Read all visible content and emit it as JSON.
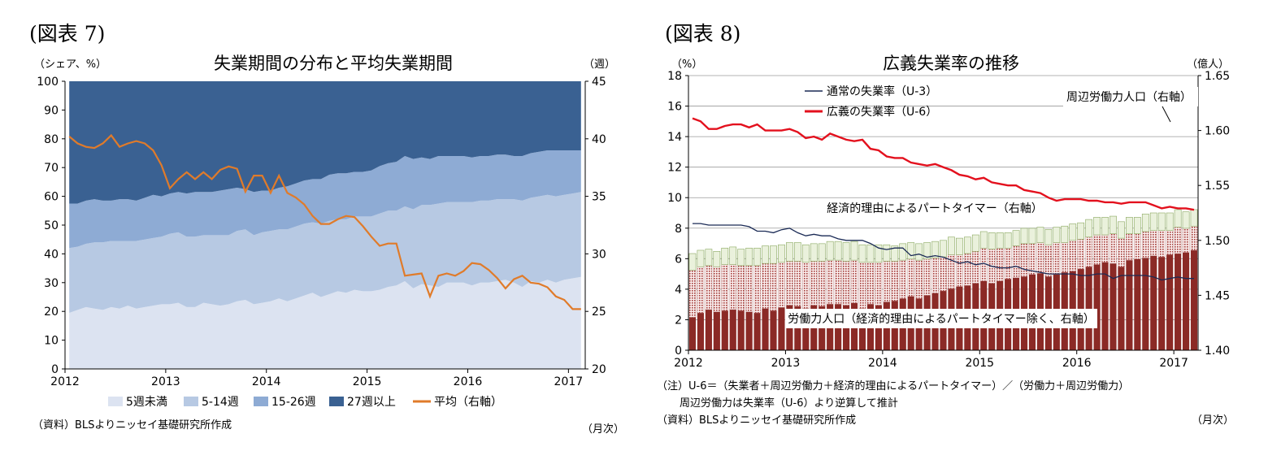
{
  "left_panel": {
    "panel_label": "(図表 7)",
    "title": "失業期間の分布と平均失業期間",
    "left_unit": "（シェア、%）",
    "right_unit": "（週）",
    "legend": [
      "5週未満",
      "5-14週",
      "15-26週",
      "27週以上",
      "平均（右軸）"
    ],
    "source": "（資料）BLSよりニッセイ基礎研究所作成",
    "month_note": "（月次）"
  },
  "right_panel": {
    "panel_label": "(図表 8)",
    "title": "広義失業率の推移",
    "left_unit": "（%）",
    "right_unit": "（億人）",
    "legend_u3": "通常の失業率（U-3）",
    "legend_u6": "広義の失業率（U-6）",
    "label_marginal": "周辺労働力人口（右軸）",
    "label_pte": "経済的理由によるパートタイマー（右軸）",
    "label_lf": "労働力人口（経済的理由によるパートタイマー除く、右軸）",
    "note_line1": "（注）U-6＝（失業者＋周辺労働力＋経済的理由によるパートタイマー）／（労働力＋周辺労働力）",
    "note_line2": "周辺労働力は失業率（U-6）より逆算して推計",
    "source": "（資料）BLSよりニッセイ基礎研究所作成",
    "month_note": "（月次）"
  },
  "chart_data": [
    {
      "type": "area",
      "title": "失業期間の分布と平均失業期間",
      "x": [
        "2012",
        "2012",
        "2012",
        "2012",
        "2012",
        "2012",
        "2012",
        "2012",
        "2012",
        "2012",
        "2012",
        "2012",
        "2013",
        "2013",
        "2013",
        "2013",
        "2013",
        "2013",
        "2013",
        "2013",
        "2013",
        "2013",
        "2013",
        "2013",
        "2014",
        "2014",
        "2014",
        "2014",
        "2014",
        "2014",
        "2014",
        "2014",
        "2014",
        "2014",
        "2014",
        "2014",
        "2015",
        "2015",
        "2015",
        "2015",
        "2015",
        "2015",
        "2015",
        "2015",
        "2015",
        "2015",
        "2015",
        "2015",
        "2016",
        "2016",
        "2016",
        "2016",
        "2016",
        "2016",
        "2016",
        "2016",
        "2016",
        "2016",
        "2016",
        "2016",
        "2017",
        "2017"
      ],
      "x_tick_labels": [
        "2012",
        "2013",
        "2014",
        "2015",
        "2016",
        "2017"
      ],
      "ylim": [
        0,
        100
      ],
      "y_ticks": [
        0,
        10,
        20,
        30,
        40,
        50,
        60,
        70,
        80,
        90,
        100
      ],
      "y2lim": [
        20,
        45
      ],
      "y2_ticks": [
        20,
        25,
        30,
        35,
        40,
        45
      ],
      "stacked": true,
      "series": [
        {
          "name": "5週未満",
          "axis": "left",
          "color": "#dce3f1",
          "values": [
            19.5,
            20.5,
            21.5,
            21,
            20.5,
            21.5,
            21,
            22,
            21,
            21.5,
            22,
            22.5,
            22.5,
            23,
            21.5,
            21.5,
            23,
            22.5,
            22,
            22.5,
            23.5,
            24,
            22.5,
            23,
            23.5,
            24.5,
            23.5,
            24.5,
            25.5,
            26.5,
            25,
            26,
            27,
            26.5,
            27.5,
            27,
            27,
            27.5,
            28.5,
            29,
            30.5,
            28,
            29.5,
            29,
            28.5,
            30,
            30,
            30,
            29,
            30,
            30,
            30.5,
            31,
            30,
            28.5,
            30.5,
            30,
            31,
            30,
            31,
            31.5,
            32
          ]
        },
        {
          "name": "5-14週",
          "axis": "left",
          "color": "#b7c9e3",
          "values": [
            22.5,
            22,
            22,
            23,
            23.5,
            23,
            23.5,
            22.5,
            23.5,
            23.5,
            23.5,
            23.5,
            24.5,
            24.5,
            24.5,
            24.5,
            23.5,
            24,
            24.5,
            24,
            24.5,
            24.5,
            24,
            24.5,
            24.5,
            24,
            25,
            25,
            25,
            24.5,
            25.5,
            25.5,
            25,
            25.5,
            25.5,
            26,
            26,
            26.5,
            26.5,
            26,
            26,
            27.5,
            27.5,
            28,
            29,
            28,
            28,
            28,
            29,
            28.5,
            28.5,
            28.5,
            28,
            29,
            30,
            29,
            30,
            29.5,
            30,
            29.5,
            29.5,
            29.5
          ]
        },
        {
          "name": "15-26週",
          "axis": "left",
          "color": "#8eabd4",
          "values": [
            15.5,
            15,
            15,
            15,
            14.5,
            14,
            14.5,
            14.5,
            14,
            14.5,
            15,
            14,
            14,
            14,
            15,
            15.5,
            15,
            15,
            15.5,
            16,
            15,
            14,
            15,
            14.5,
            14,
            14.5,
            15,
            15,
            15,
            15,
            15.5,
            16,
            16,
            16,
            15.5,
            15.5,
            16,
            16.5,
            16.5,
            17,
            17.5,
            17.5,
            16.5,
            16,
            16.5,
            16,
            16,
            16,
            15.5,
            15.5,
            15.5,
            15.5,
            15.5,
            15,
            15.5,
            15.5,
            15.5,
            15.5,
            16,
            15.5,
            15,
            14.5
          ]
        },
        {
          "name": "27週以上",
          "axis": "left",
          "color": "#3a6192",
          "values": [
            42.5,
            42.5,
            41.5,
            41,
            41.5,
            41.5,
            41,
            41,
            41.5,
            40.5,
            39.5,
            40,
            39,
            38.5,
            39,
            38.5,
            38.5,
            38.5,
            38,
            37.5,
            37,
            37.5,
            38.5,
            38,
            38,
            37,
            36.5,
            35.5,
            34.5,
            34,
            34,
            32.5,
            32,
            32,
            31.5,
            31.5,
            31,
            29.5,
            28.5,
            28,
            26,
            27,
            26.5,
            27,
            26,
            26,
            26,
            26,
            26.5,
            26,
            26,
            25.5,
            25.5,
            26,
            26,
            25,
            24.5,
            24,
            24,
            24,
            24,
            24
          ]
        },
        {
          "name": "平均（右軸）",
          "axis": "right",
          "type": "line",
          "color": "#e07b2a",
          "values": [
            40.2,
            39.6,
            39.3,
            39.2,
            39.6,
            40.3,
            39.3,
            39.6,
            39.8,
            39.6,
            39.0,
            37.7,
            35.7,
            36.5,
            37.1,
            36.5,
            37.1,
            36.5,
            37.3,
            37.6,
            37.4,
            35.4,
            36.8,
            36.8,
            35.3,
            36.8,
            35.3,
            34.9,
            34.3,
            33.3,
            32.6,
            32.6,
            33.0,
            33.3,
            33.2,
            32.4,
            31.5,
            30.7,
            30.9,
            30.9,
            28.1,
            28.2,
            28.3,
            26.3,
            28.1,
            28.3,
            28.1,
            28.5,
            29.2,
            29.1,
            28.6,
            27.9,
            27.0,
            27.8,
            28.1,
            27.5,
            27.4,
            27.1,
            26.3,
            26.0,
            25.2,
            25.2
          ]
        }
      ]
    },
    {
      "type": "bar",
      "title": "広義失業率の推移",
      "x": [
        "2012",
        "2012",
        "2012",
        "2012",
        "2012",
        "2012",
        "2012",
        "2012",
        "2012",
        "2012",
        "2012",
        "2012",
        "2013",
        "2013",
        "2013",
        "2013",
        "2013",
        "2013",
        "2013",
        "2013",
        "2013",
        "2013",
        "2013",
        "2013",
        "2014",
        "2014",
        "2014",
        "2014",
        "2014",
        "2014",
        "2014",
        "2014",
        "2014",
        "2014",
        "2014",
        "2014",
        "2015",
        "2015",
        "2015",
        "2015",
        "2015",
        "2015",
        "2015",
        "2015",
        "2015",
        "2015",
        "2015",
        "2015",
        "2016",
        "2016",
        "2016",
        "2016",
        "2016",
        "2016",
        "2016",
        "2016",
        "2016",
        "2016",
        "2016",
        "2016",
        "2017",
        "2017",
        "2017"
      ],
      "x_tick_labels": [
        "2012",
        "2013",
        "2014",
        "2015",
        "2016",
        "2017"
      ],
      "ylim": [
        0,
        18
      ],
      "y_ticks": [
        0,
        2,
        4,
        6,
        8,
        10,
        12,
        14,
        16,
        18
      ],
      "y2lim": [
        1.4,
        1.65
      ],
      "y2_tick_labels": [
        "1.40",
        "1.45",
        "1.50",
        "1.55",
        "1.60",
        "1.65"
      ],
      "stacked": true,
      "series": [
        {
          "name": "労働力人口（経済的理由によるパートタイマー除く、右軸）",
          "axis": "right",
          "color": "#8b2a26",
          "values": [
            1.43,
            1.434,
            1.437,
            1.435,
            1.436,
            1.437,
            1.436,
            1.435,
            1.434,
            1.438,
            1.436,
            1.439,
            1.441,
            1.44,
            1.438,
            1.441,
            1.44,
            1.442,
            1.442,
            1.441,
            1.443,
            1.438,
            1.442,
            1.441,
            1.444,
            1.445,
            1.447,
            1.449,
            1.447,
            1.45,
            1.452,
            1.454,
            1.456,
            1.458,
            1.459,
            1.461,
            1.463,
            1.461,
            1.463,
            1.465,
            1.466,
            1.467,
            1.469,
            1.47,
            1.467,
            1.469,
            1.471,
            1.472,
            1.474,
            1.476,
            1.478,
            1.48,
            1.479,
            1.476,
            1.482,
            1.483,
            1.484,
            1.486,
            1.485,
            1.487,
            1.488,
            1.489,
            1.491
          ]
        },
        {
          "name": "経済的理由によるパートタイマー（右軸）",
          "axis": "right",
          "color": "#c9a3a1",
          "values": [
            0.043,
            0.042,
            0.04,
            0.041,
            0.042,
            0.041,
            0.041,
            0.042,
            0.043,
            0.041,
            0.043,
            0.041,
            0.04,
            0.041,
            0.042,
            0.04,
            0.041,
            0.04,
            0.04,
            0.04,
            0.039,
            0.042,
            0.038,
            0.039,
            0.037,
            0.036,
            0.035,
            0.034,
            0.035,
            0.033,
            0.032,
            0.031,
            0.031,
            0.029,
            0.029,
            0.029,
            0.03,
            0.031,
            0.03,
            0.028,
            0.029,
            0.03,
            0.028,
            0.028,
            0.029,
            0.029,
            0.027,
            0.028,
            0.027,
            0.027,
            0.027,
            0.025,
            0.027,
            0.026,
            0.024,
            0.023,
            0.024,
            0.023,
            0.024,
            0.022,
            0.024,
            0.022,
            0.022
          ]
        },
        {
          "name": "周辺労働力人口（右軸）",
          "axis": "right",
          "color": "#eaf1dc",
          "values": [
            0.015,
            0.015,
            0.015,
            0.014,
            0.015,
            0.016,
            0.015,
            0.016,
            0.016,
            0.016,
            0.016,
            0.016,
            0.017,
            0.017,
            0.016,
            0.016,
            0.016,
            0.017,
            0.017,
            0.017,
            0.017,
            0.016,
            0.016,
            0.016,
            0.015,
            0.014,
            0.015,
            0.015,
            0.015,
            0.015,
            0.015,
            0.015,
            0.016,
            0.015,
            0.015,
            0.015,
            0.015,
            0.015,
            0.014,
            0.014,
            0.014,
            0.014,
            0.014,
            0.014,
            0.014,
            0.014,
            0.015,
            0.015,
            0.015,
            0.016,
            0.016,
            0.016,
            0.016,
            0.015,
            0.015,
            0.015,
            0.016,
            0.016,
            0.016,
            0.016,
            0.016,
            0.015,
            0.015
          ]
        },
        {
          "name": "通常の失業率（U-3）",
          "axis": "left",
          "type": "line",
          "color": "#1a2a55",
          "values": [
            8.3,
            8.3,
            8.2,
            8.2,
            8.2,
            8.2,
            8.2,
            8.1,
            7.8,
            7.8,
            7.7,
            7.9,
            8.0,
            7.7,
            7.5,
            7.6,
            7.5,
            7.5,
            7.3,
            7.2,
            7.2,
            7.2,
            7.0,
            6.7,
            6.6,
            6.7,
            6.7,
            6.2,
            6.3,
            6.1,
            6.2,
            6.1,
            5.9,
            5.7,
            5.8,
            5.6,
            5.7,
            5.5,
            5.4,
            5.4,
            5.5,
            5.3,
            5.2,
            5.1,
            5.0,
            5.0,
            5.0,
            5.0,
            4.9,
            4.9,
            5.0,
            5.0,
            4.7,
            4.9,
            4.9,
            4.9,
            4.9,
            4.8,
            4.6,
            4.7,
            4.8,
            4.7,
            4.7
          ]
        },
        {
          "name": "広義の失業率（U-6）",
          "axis": "left",
          "type": "line",
          "color": "#e3101d",
          "values": [
            15.2,
            15.0,
            14.5,
            14.5,
            14.7,
            14.8,
            14.8,
            14.6,
            14.8,
            14.4,
            14.4,
            14.4,
            14.5,
            14.3,
            13.9,
            14.0,
            13.8,
            14.2,
            14.0,
            13.8,
            13.7,
            13.8,
            13.2,
            13.1,
            12.7,
            12.6,
            12.6,
            12.3,
            12.2,
            12.1,
            12.2,
            12.0,
            11.8,
            11.5,
            11.4,
            11.2,
            11.3,
            11.0,
            10.9,
            10.8,
            10.8,
            10.5,
            10.4,
            10.3,
            10.0,
            9.8,
            9.9,
            9.9,
            9.9,
            9.8,
            9.8,
            9.7,
            9.7,
            9.6,
            9.7,
            9.7,
            9.7,
            9.5,
            9.3,
            9.4,
            9.3,
            9.3,
            9.2
          ]
        }
      ]
    }
  ]
}
